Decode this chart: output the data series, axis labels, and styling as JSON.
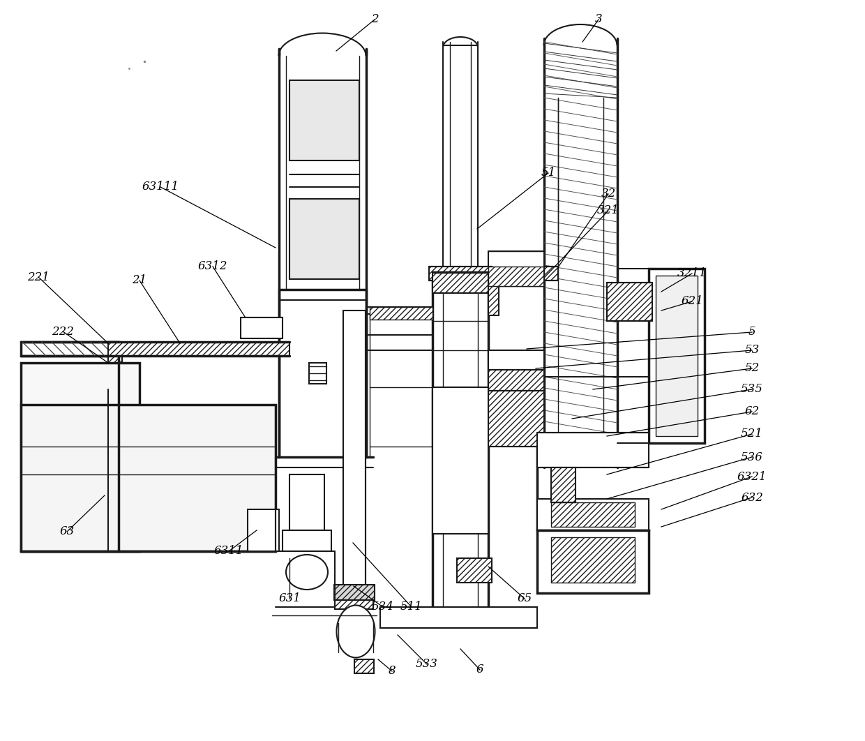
{
  "background_color": "#ffffff",
  "line_color": "#1a1a1a",
  "figsize": [
    12.4,
    10.62
  ],
  "dpi": 100,
  "labels_data": [
    [
      "2",
      537,
      28,
      482,
      73
    ],
    [
      "3",
      858,
      28,
      835,
      60
    ],
    [
      "51",
      786,
      248,
      684,
      328
    ],
    [
      "32",
      872,
      278,
      800,
      383
    ],
    [
      "321",
      872,
      302,
      780,
      398
    ],
    [
      "3211",
      992,
      392,
      948,
      418
    ],
    [
      "621",
      992,
      432,
      948,
      445
    ],
    [
      "5",
      1078,
      476,
      755,
      500
    ],
    [
      "53",
      1078,
      502,
      768,
      528
    ],
    [
      "52",
      1078,
      528,
      850,
      558
    ],
    [
      "535",
      1078,
      558,
      820,
      600
    ],
    [
      "62",
      1078,
      590,
      870,
      625
    ],
    [
      "521",
      1078,
      622,
      870,
      680
    ],
    [
      "536",
      1078,
      655,
      870,
      715
    ],
    [
      "6321",
      1078,
      683,
      948,
      730
    ],
    [
      "632",
      1078,
      713,
      948,
      755
    ],
    [
      "65",
      752,
      858,
      700,
      812
    ],
    [
      "6",
      688,
      960,
      660,
      930
    ],
    [
      "533",
      612,
      952,
      570,
      910
    ],
    [
      "8",
      562,
      962,
      542,
      945
    ],
    [
      "511",
      590,
      870,
      506,
      778
    ],
    [
      "534",
      549,
      870,
      507,
      840
    ],
    [
      "631",
      415,
      858,
      415,
      800
    ],
    [
      "6311",
      328,
      790,
      368,
      760
    ],
    [
      "6312",
      305,
      382,
      360,
      468
    ],
    [
      "63111",
      230,
      268,
      395,
      355
    ],
    [
      "21",
      200,
      402,
      258,
      492
    ],
    [
      "221",
      55,
      397,
      155,
      492
    ],
    [
      "222",
      90,
      475,
      155,
      520
    ],
    [
      "63",
      96,
      762,
      150,
      710
    ]
  ]
}
